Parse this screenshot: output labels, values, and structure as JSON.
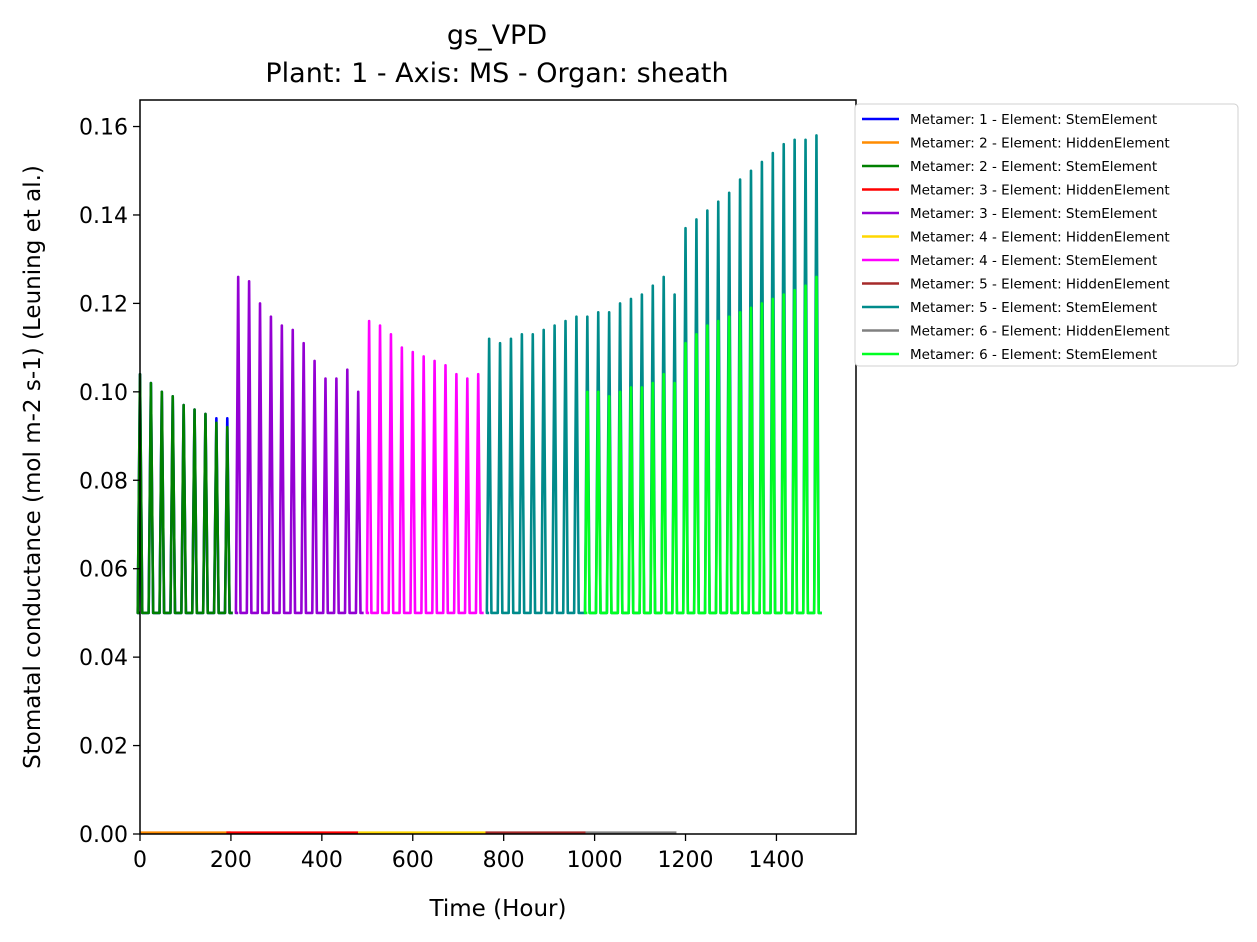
{
  "chart_data": {
    "type": "line",
    "title": "gs_VPD",
    "subtitle": "Plant: 1 - Axis: MS - Organ: sheath",
    "xlabel": "Time (Hour)",
    "ylabel": "Stomatal conductance (mol m-2 s-1) (Leuning et al.)",
    "xlim": [
      0,
      1575
    ],
    "ylim": [
      0,
      0.166
    ],
    "xticks": [
      0,
      200,
      400,
      600,
      800,
      1000,
      1200,
      1400
    ],
    "xtick_labels": [
      "0",
      "200",
      "400",
      "600",
      "800",
      "1000",
      "1200",
      "1400"
    ],
    "yticks": [
      0,
      0.02,
      0.04,
      0.06,
      0.08,
      0.1,
      0.12,
      0.14,
      0.16
    ],
    "ytick_labels": [
      "0.00",
      "0.02",
      "0.04",
      "0.06",
      "0.08",
      "0.10",
      "0.12",
      "0.14",
      "0.16"
    ],
    "grid": false,
    "legend_position": "outside-top-right",
    "series": [
      {
        "name": "Metamer: 1 - Element: StemElement",
        "color": "#0000ff",
        "kind": "osc",
        "min": 0.05,
        "peaks": [
          [
            0,
            0.104
          ],
          [
            24,
            0.102
          ],
          [
            48,
            0.1
          ],
          [
            72,
            0.099
          ],
          [
            96,
            0.097
          ],
          [
            120,
            0.096
          ],
          [
            144,
            0.095
          ],
          [
            168,
            0.094
          ],
          [
            192,
            0.094
          ]
        ]
      },
      {
        "name": "Metamer: 2 - Element: HiddenElement",
        "color": "#ff8c00",
        "kind": "flat",
        "x": [
          0,
          200
        ],
        "y": 0.0003
      },
      {
        "name": "Metamer: 2 - Element: StemElement",
        "color": "#008000",
        "kind": "osc",
        "min": 0.05,
        "peaks": [
          [
            0,
            0.104
          ],
          [
            24,
            0.102
          ],
          [
            48,
            0.1
          ],
          [
            72,
            0.099
          ],
          [
            96,
            0.097
          ],
          [
            120,
            0.096
          ],
          [
            144,
            0.095
          ],
          [
            168,
            0.093
          ],
          [
            192,
            0.092
          ]
        ]
      },
      {
        "name": "Metamer: 3 - Element: HiddenElement",
        "color": "#ff0000",
        "kind": "flat",
        "x": [
          190,
          480
        ],
        "y": 0.0003
      },
      {
        "name": "Metamer: 3 - Element: StemElement",
        "color": "#9400d3",
        "kind": "osc",
        "min": 0.05,
        "peaks": [
          [
            216,
            0.126
          ],
          [
            240,
            0.125
          ],
          [
            264,
            0.12
          ],
          [
            288,
            0.117
          ],
          [
            312,
            0.115
          ],
          [
            336,
            0.114
          ],
          [
            360,
            0.111
          ],
          [
            384,
            0.107
          ],
          [
            408,
            0.103
          ],
          [
            432,
            0.103
          ],
          [
            456,
            0.105
          ],
          [
            480,
            0.1
          ]
        ]
      },
      {
        "name": "Metamer: 4 - Element: HiddenElement",
        "color": "#ffd700",
        "kind": "flat",
        "x": [
          480,
          760
        ],
        "y": 0.0003
      },
      {
        "name": "Metamer: 4 - Element: StemElement",
        "color": "#ff00ff",
        "kind": "osc",
        "min": 0.05,
        "peaks": [
          [
            504,
            0.116
          ],
          [
            528,
            0.115
          ],
          [
            552,
            0.113
          ],
          [
            576,
            0.11
          ],
          [
            600,
            0.109
          ],
          [
            624,
            0.108
          ],
          [
            648,
            0.107
          ],
          [
            672,
            0.106
          ],
          [
            696,
            0.104
          ],
          [
            720,
            0.103
          ],
          [
            744,
            0.104
          ]
        ]
      },
      {
        "name": "Metamer: 5 - Element: HiddenElement",
        "color": "#a52a2a",
        "kind": "flat",
        "x": [
          760,
          980
        ],
        "y": 0.0003
      },
      {
        "name": "Metamer: 5 - Element: StemElement",
        "color": "#008b8b",
        "kind": "osc",
        "min": 0.05,
        "peaks": [
          [
            768,
            0.112
          ],
          [
            792,
            0.111
          ],
          [
            816,
            0.112
          ],
          [
            840,
            0.113
          ],
          [
            864,
            0.113
          ],
          [
            888,
            0.114
          ],
          [
            912,
            0.115
          ],
          [
            936,
            0.116
          ],
          [
            960,
            0.117
          ],
          [
            984,
            0.117
          ],
          [
            1008,
            0.118
          ],
          [
            1032,
            0.118
          ],
          [
            1056,
            0.12
          ],
          [
            1080,
            0.121
          ],
          [
            1104,
            0.122
          ],
          [
            1128,
            0.124
          ],
          [
            1152,
            0.126
          ],
          [
            1176,
            0.122
          ],
          [
            1200,
            0.137
          ],
          [
            1224,
            0.139
          ],
          [
            1248,
            0.141
          ],
          [
            1272,
            0.143
          ],
          [
            1296,
            0.145
          ],
          [
            1320,
            0.148
          ],
          [
            1344,
            0.15
          ],
          [
            1368,
            0.152
          ],
          [
            1392,
            0.154
          ],
          [
            1416,
            0.156
          ],
          [
            1440,
            0.157
          ],
          [
            1464,
            0.157
          ],
          [
            1488,
            0.158
          ]
        ]
      },
      {
        "name": "Metamer: 6 - Element: HiddenElement",
        "color": "#808080",
        "kind": "flat",
        "x": [
          980,
          1180
        ],
        "y": 0.0003
      },
      {
        "name": "Metamer: 6 - Element: StemElement",
        "color": "#00ff22",
        "kind": "osc",
        "min": 0.05,
        "peaks": [
          [
            984,
            0.1
          ],
          [
            1008,
            0.1
          ],
          [
            1032,
            0.099
          ],
          [
            1056,
            0.1
          ],
          [
            1080,
            0.101
          ],
          [
            1104,
            0.101
          ],
          [
            1128,
            0.102
          ],
          [
            1152,
            0.104
          ],
          [
            1176,
            0.102
          ],
          [
            1200,
            0.111
          ],
          [
            1224,
            0.113
          ],
          [
            1248,
            0.115
          ],
          [
            1272,
            0.116
          ],
          [
            1296,
            0.117
          ],
          [
            1320,
            0.118
          ],
          [
            1344,
            0.119
          ],
          [
            1368,
            0.12
          ],
          [
            1392,
            0.121
          ],
          [
            1416,
            0.122
          ],
          [
            1440,
            0.123
          ],
          [
            1464,
            0.124
          ],
          [
            1488,
            0.126
          ]
        ]
      }
    ]
  }
}
